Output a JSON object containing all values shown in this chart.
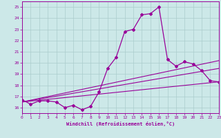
{
  "xlabel": "Windchill (Refroidissement éolien,°C)",
  "x_values": [
    0,
    1,
    2,
    3,
    4,
    5,
    6,
    7,
    8,
    9,
    10,
    11,
    12,
    13,
    14,
    15,
    16,
    17,
    18,
    19,
    20,
    21,
    22,
    23
  ],
  "main_y": [
    16.7,
    16.3,
    16.6,
    16.6,
    16.5,
    16.0,
    16.2,
    15.8,
    16.1,
    17.4,
    19.5,
    20.5,
    22.8,
    23.0,
    24.3,
    24.4,
    25.0,
    20.3,
    19.7,
    20.1,
    19.9,
    19.3,
    18.4,
    18.3
  ],
  "trend1_start": 16.5,
  "trend1_end": 20.2,
  "trend2_start": 16.5,
  "trend2_end": 19.5,
  "trend3_start": 16.5,
  "trend3_end": 18.3,
  "line_color": "#990099",
  "bg_color": "#cce8e8",
  "grid_color": "#aacccc",
  "ylim": [
    15.5,
    25.5
  ],
  "xlim": [
    0,
    23
  ],
  "yticks": [
    16,
    17,
    18,
    19,
    20,
    21,
    22,
    23,
    24,
    25
  ],
  "xticks": [
    0,
    1,
    2,
    3,
    4,
    5,
    6,
    7,
    8,
    9,
    10,
    11,
    12,
    13,
    14,
    15,
    16,
    17,
    18,
    19,
    20,
    21,
    22,
    23
  ]
}
